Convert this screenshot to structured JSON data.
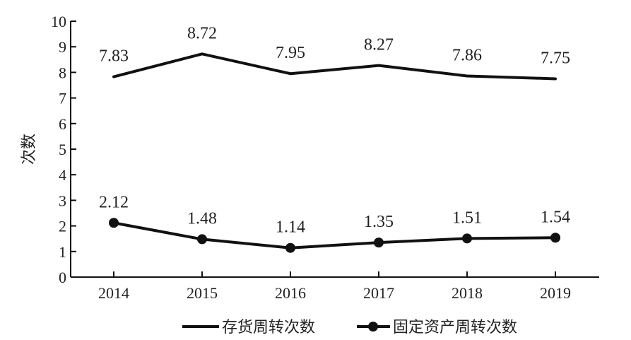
{
  "chart_data": {
    "type": "line",
    "title": "",
    "xlabel": "",
    "ylabel": "次数",
    "categories": [
      "2014",
      "2015",
      "2016",
      "2017",
      "2018",
      "2019"
    ],
    "ylim": [
      0,
      10
    ],
    "yticks": [
      "0",
      "1",
      "2",
      "3",
      "4",
      "5",
      "6",
      "7",
      "8",
      "9",
      "10"
    ],
    "grid": false,
    "legend_position": "bottom",
    "series": [
      {
        "name": "存货周转次数",
        "values": [
          7.83,
          8.72,
          7.95,
          8.27,
          7.86,
          7.75
        ],
        "labels": [
          "7.83",
          "8.72",
          "7.95",
          "8.27",
          "7.86",
          "7.75"
        ],
        "marker": "none",
        "color": "#111111"
      },
      {
        "name": "固定资产周转次数",
        "values": [
          2.12,
          1.48,
          1.14,
          1.35,
          1.51,
          1.54
        ],
        "labels": [
          "2.12",
          "1.48",
          "1.14",
          "1.35",
          "1.51",
          "1.54"
        ],
        "marker": "circle",
        "color": "#111111"
      }
    ]
  }
}
